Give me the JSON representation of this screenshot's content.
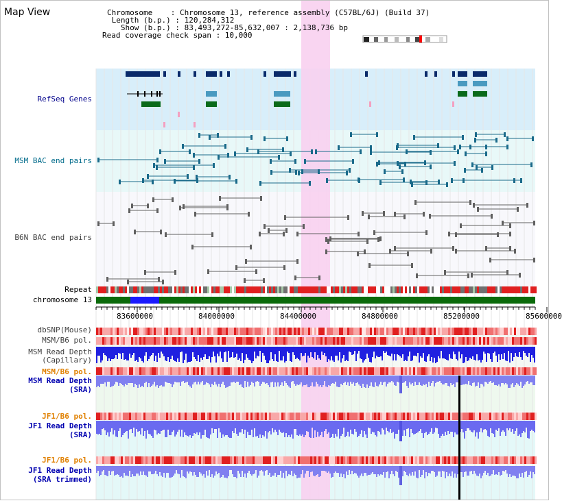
{
  "view_title": "Map View",
  "header": {
    "lines": [
      "Chromosome    : Chromosome 13, reference assembly (C57BL/6J) (Build 37)",
      " Length (b.p.) : 120,284,312",
      "   Show (b.p.) : 83,493,272-85,632,007 : 2,138,736 bp",
      "Read coverage check span : 10,000"
    ]
  },
  "tracks": {
    "refseq": "RefSeq Genes",
    "msm_bac": "MSM BAC end pairs",
    "b6n_bac": "B6N BAC end pairs",
    "repeat": "Repeat",
    "chromosome": "chromosome 13",
    "dbsnp": "dbSNP(Mouse)",
    "msm_b6_pol": "MSM/B6 pol.",
    "msm_depth_cap_1": "MSM Read Depth",
    "msm_depth_cap_2": "(Capillary)",
    "msm_b6_pol_2": "MSM/B6 pol.",
    "msm_depth_sra_1": "MSM Read Depth",
    "msm_depth_sra_2": "(SRA)",
    "jf1_b6_pol": "JF1/B6 pol.",
    "jf1_depth_sra_1": "JF1 Read Depth",
    "jf1_depth_sra_2": "(SRA)",
    "jf1_b6_pol_2": "JF1/B6 pol.",
    "jf1_depth_trim_1": "JF1 Read Depth",
    "jf1_depth_trim_2": "(SRA trimmed)"
  },
  "axis": {
    "ticks": [
      "83600000",
      "84000000",
      "84400000",
      "84800000",
      "85200000",
      "85600000"
    ]
  },
  "colors": {
    "refseq_label": "#00008b",
    "msm_bac_label": "#006b8b",
    "b6n_bac_label": "#404040",
    "pol_orange": "#e08000",
    "depth_blue": "#0000b0",
    "highlight": "#f8d0f0",
    "chrom_green": "#006400",
    "chrom_blue": "#1a1aff"
  }
}
